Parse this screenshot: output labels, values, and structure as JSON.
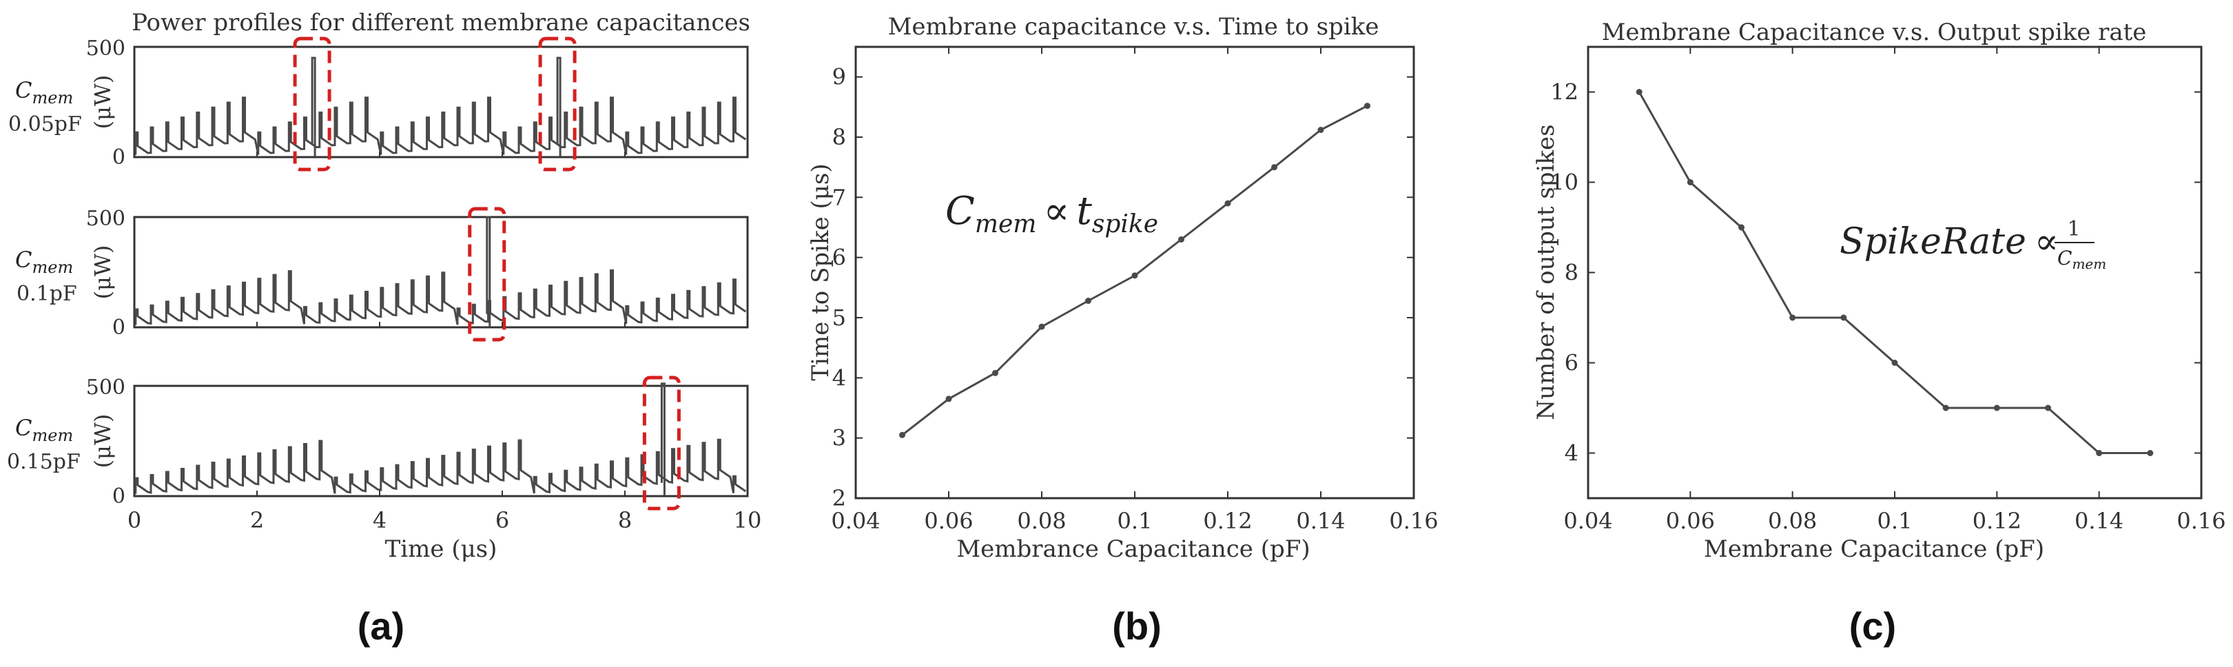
{
  "colors": {
    "line": "#4a4a4a",
    "highlight": "#d42020",
    "axis": "#333333",
    "text": "#333333"
  },
  "panel_labels": [
    "(a)",
    "(b)",
    "(c)"
  ],
  "chart_data": [
    {
      "type": "line",
      "title": "Power profiles for different membrane capacitances",
      "xlabel": "Time (μs)",
      "xlim": [
        0,
        10
      ],
      "xticks": [
        "0",
        "2",
        "4",
        "6",
        "8",
        "10"
      ],
      "ylabel": "(μW)",
      "ylim": [
        0,
        500
      ],
      "yticks": [
        "0",
        "500"
      ],
      "subplots": [
        {
          "cap_symbol": "C",
          "cap_sub": "mem",
          "cap_value": "0.05pF",
          "spike_times": [
            2.9,
            6.9
          ],
          "spike_peak": 450,
          "period": 0.25,
          "duty": 0.05,
          "note": "highlighted output spikes"
        },
        {
          "cap_symbol": "C",
          "cap_sub": "mem",
          "cap_value": "0.1pF",
          "spike_times": [
            5.75
          ],
          "spike_peak": 500,
          "period": 0.25,
          "duty": 0.05,
          "note": "highlighted output spike"
        },
        {
          "cap_symbol": "C",
          "cap_sub": "mem",
          "cap_value": "0.15pF",
          "spike_times": [
            8.6
          ],
          "spike_peak": 510,
          "period": 0.25,
          "duty": 0.05,
          "note": "highlighted output spike"
        }
      ]
    },
    {
      "type": "line",
      "title": "Membrane capacitance v.s. Time to spike",
      "xlabel": "Membrance Capacitance (pF)",
      "ylabel": "Time to Spike (μs)",
      "x": [
        0.05,
        0.06,
        0.07,
        0.08,
        0.09,
        0.1,
        0.11,
        0.12,
        0.13,
        0.14,
        0.15
      ],
      "y": [
        3.05,
        3.65,
        4.08,
        4.85,
        5.28,
        5.7,
        6.3,
        6.9,
        7.5,
        8.12,
        8.52
      ],
      "xlim": [
        0.04,
        0.16
      ],
      "ylim": [
        2,
        9.5
      ],
      "xticks": [
        "0.04",
        "0.06",
        "0.08",
        "0.1",
        "0.12",
        "0.14",
        "0.16"
      ],
      "yticks": [
        "2",
        "3",
        "4",
        "5",
        "6",
        "7",
        "8",
        "9"
      ],
      "annotation": {
        "lhs": "C",
        "lhs_sub": "mem",
        "op": "∝",
        "rhs": "t",
        "rhs_sub": "spike"
      }
    },
    {
      "type": "line",
      "title": "Membrane Capacitance v.s. Output spike rate",
      "xlabel": "Membrane Capacitance (pF)",
      "ylabel": "Number of output spikes",
      "x": [
        0.05,
        0.06,
        0.07,
        0.08,
        0.09,
        0.1,
        0.11,
        0.12,
        0.13,
        0.14,
        0.15
      ],
      "y": [
        12,
        10,
        9,
        7,
        7,
        6,
        5,
        5,
        5,
        4,
        4
      ],
      "xlim": [
        0.04,
        0.16
      ],
      "ylim": [
        3,
        13
      ],
      "xticks": [
        "0.04",
        "0.06",
        "0.08",
        "0.1",
        "0.12",
        "0.14",
        "0.16"
      ],
      "yticks": [
        "4",
        "6",
        "8",
        "10",
        "12"
      ],
      "annotation": {
        "lhs": "SpikeRate",
        "op": "∝",
        "num": "1",
        "den": "C",
        "den_sub": "mem"
      }
    }
  ]
}
